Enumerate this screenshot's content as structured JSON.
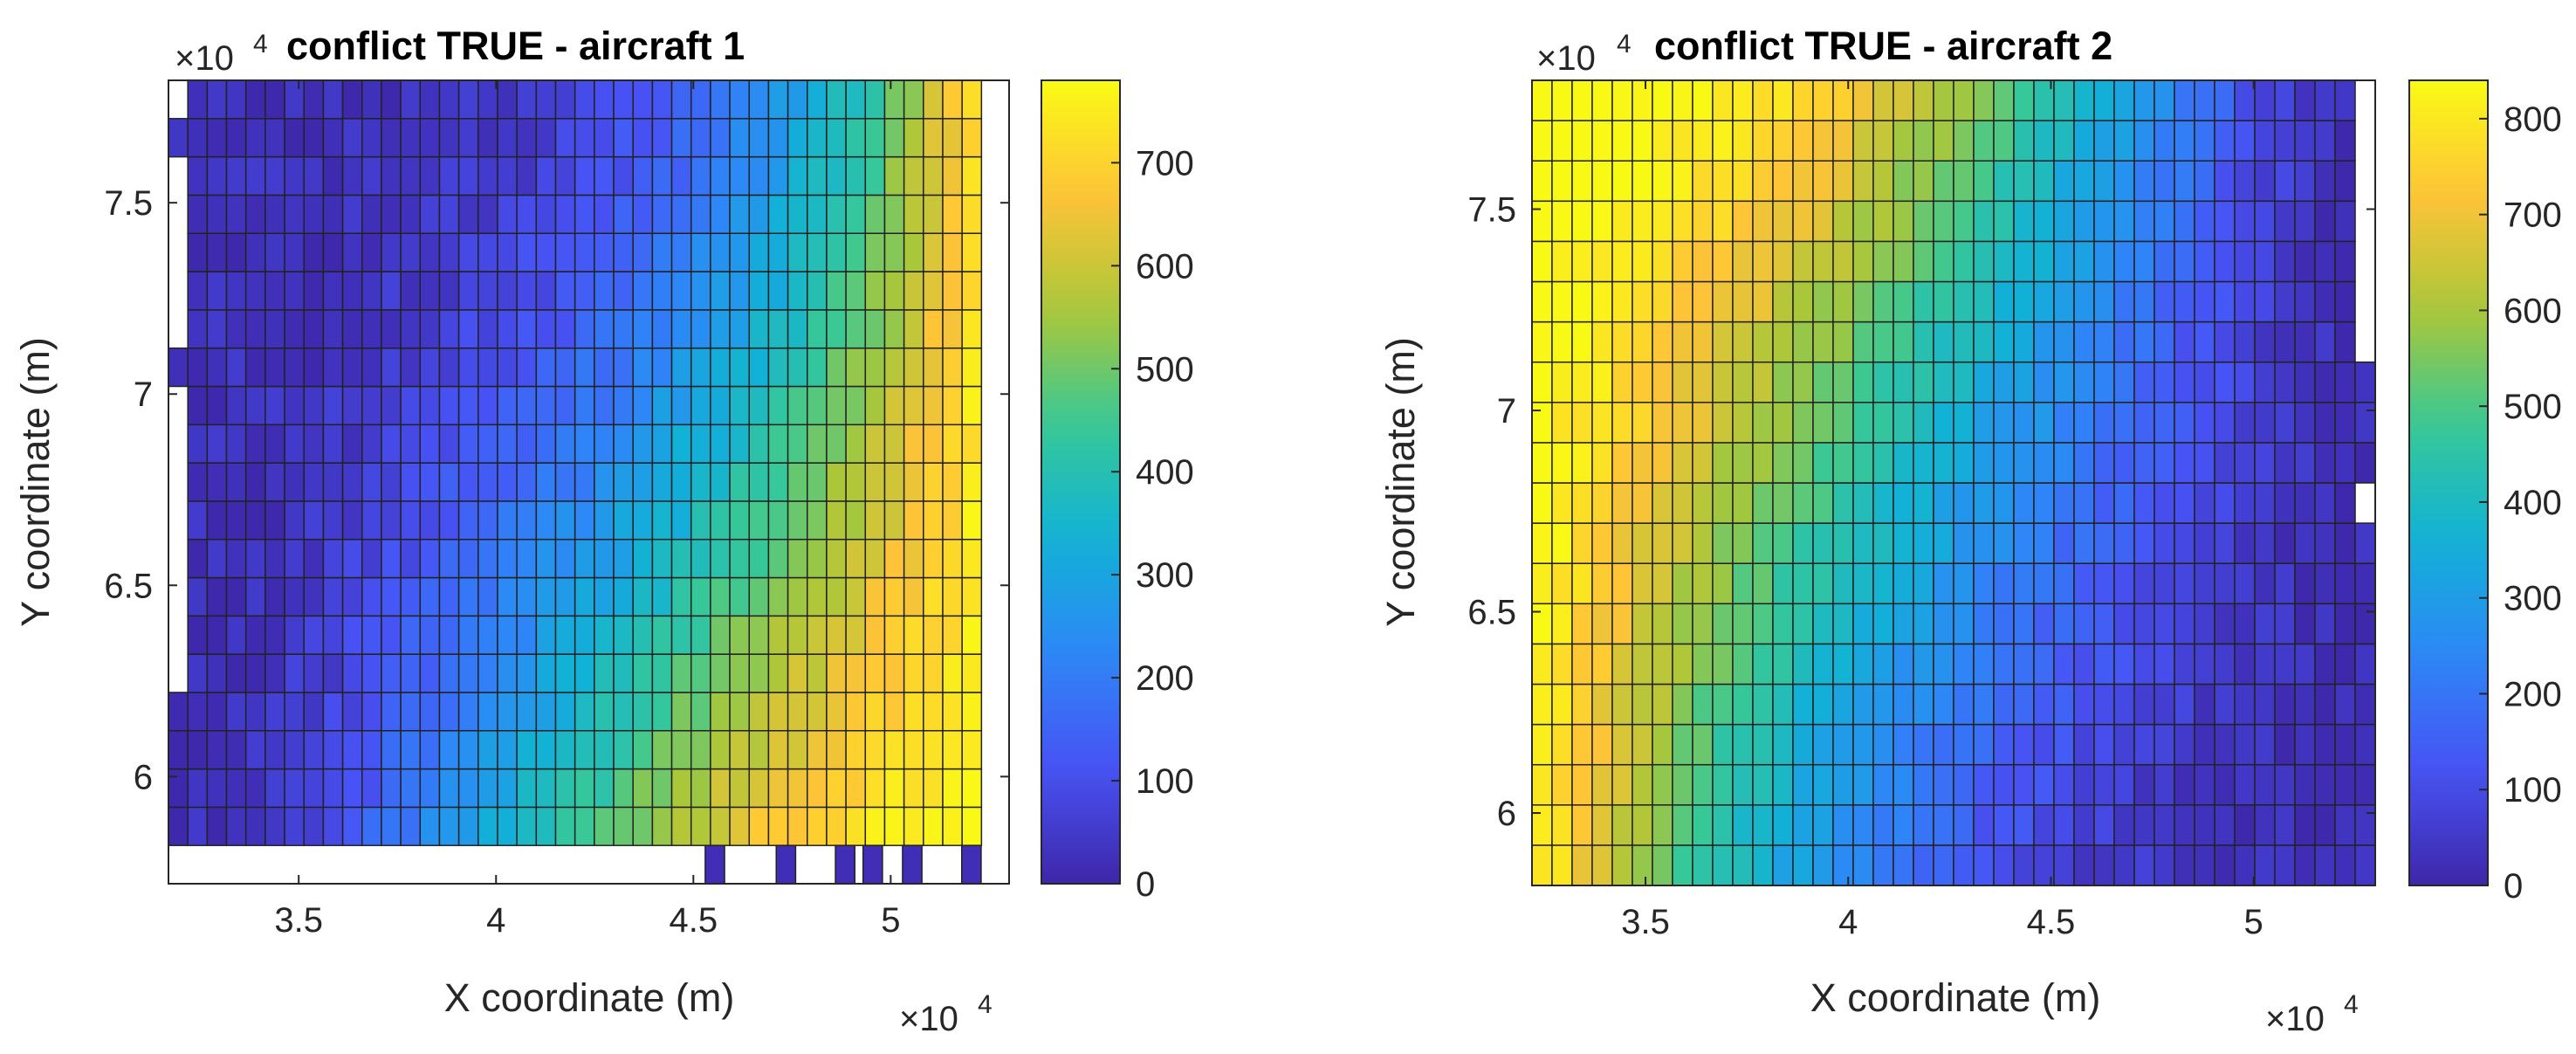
{
  "colors": {
    "background": "#ffffff",
    "axis": "#262626",
    "cell_edge": "#222222",
    "colormap": "parula"
  },
  "chart_data": [
    {
      "type": "heatmap",
      "title": "conflict TRUE - aircraft 1",
      "xlabel": "X coordinate (m)",
      "ylabel": "Y coordinate (m)",
      "x_multiplier": "×10",
      "x_multiplier_exp": "4",
      "y_multiplier": "×10",
      "y_multiplier_exp": "4",
      "xlim": [
        3.17,
        5.3
      ],
      "ylim": [
        5.72,
        7.82
      ],
      "xticks": [
        3.5,
        4,
        4.5,
        5
      ],
      "xtick_labels": [
        "3.5",
        "4",
        "4.5",
        "5"
      ],
      "yticks": [
        6,
        6.5,
        7,
        7.5
      ],
      "ytick_labels": [
        "6",
        "6.5",
        "7",
        "7.5"
      ],
      "x_start": 3.17,
      "x_end": 5.23,
      "n_cols": 42,
      "y_start": 5.82,
      "y_end": 7.82,
      "n_rows": 20,
      "value_model": {
        "base": 25,
        "x_gain": 730,
        "x_from": 3.3,
        "x_to": 5.23,
        "x_power": 1.8,
        "y_coupling": -0.55,
        "y_ref": 6.8,
        "y_span": 1.0,
        "noise": 30
      },
      "extra_cells_x": [
        4.53,
        4.71,
        4.86,
        4.93,
        5.03,
        5.18
      ],
      "extra_cells_y": 5.72,
      "extra_cells_value": 20,
      "first_col_missing_rows_y": [
        7.72,
        7.52,
        7.42,
        7.32,
        7.22,
        7.12,
        6.92,
        6.82,
        6.72,
        6.62,
        6.52,
        6.42,
        6.32,
        6.22
      ],
      "last_col_missing_rows_y": [],
      "colorbar": {
        "min": 0,
        "max": 780,
        "ticks": [
          0,
          100,
          200,
          300,
          400,
          500,
          600,
          700
        ],
        "tick_labels": [
          "0",
          "100",
          "200",
          "300",
          "400",
          "500",
          "600",
          "700"
        ]
      }
    },
    {
      "type": "heatmap",
      "title": "conflict TRUE - aircraft 2",
      "xlabel": "X coordinate (m)",
      "ylabel": "Y coordinate (m)",
      "x_multiplier": "×10",
      "x_multiplier_exp": "4",
      "y_multiplier": "×10",
      "y_multiplier_exp": "4",
      "xlim": [
        3.22,
        5.3
      ],
      "ylim": [
        5.82,
        7.82
      ],
      "xticks": [
        3.5,
        4,
        4.5,
        5
      ],
      "xtick_labels": [
        "3.5",
        "4",
        "4.5",
        "5"
      ],
      "yticks": [
        6,
        6.5,
        7,
        7.5
      ],
      "ytick_labels": [
        "6",
        "6.5",
        "7",
        "7.5"
      ],
      "x_start": 3.22,
      "x_end": 5.3,
      "n_cols": 42,
      "y_start": 5.82,
      "y_end": 7.82,
      "n_rows": 20,
      "value_model": {
        "base": 20,
        "x_gain": 830,
        "x_from": 5.25,
        "x_to": 3.22,
        "x_power": 1.6,
        "y_coupling": 0.6,
        "y_ref": 6.6,
        "y_span": 1.2,
        "noise": 30
      },
      "extra_cells_x": [],
      "extra_cells_y": 5.72,
      "extra_cells_value": 20,
      "first_col_missing_rows_y": [],
      "last_col_missing_rows_y": [
        7.72,
        7.62,
        7.52,
        7.42,
        7.32,
        7.22,
        7.12,
        6.72
      ],
      "colorbar": {
        "min": 0,
        "max": 840,
        "ticks": [
          0,
          100,
          200,
          300,
          400,
          500,
          600,
          700,
          800
        ],
        "tick_labels": [
          "0",
          "100",
          "200",
          "300",
          "400",
          "500",
          "600",
          "700",
          "800"
        ]
      }
    }
  ]
}
